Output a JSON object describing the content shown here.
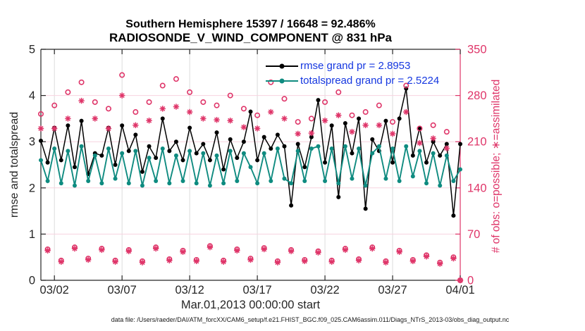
{
  "figure": {
    "title_line1": "Southern Hemisphere 15397 / 16648 = 92.486%",
    "title_line2": "RADIOSONDE_V_WIND_COMPONENT @ 831 hPa",
    "x_label": "Mar.01,2013 00:00:00 start",
    "y_label_left": "rmse and totalspread",
    "y_label_right": "# of obs: o=possible; ∗=assimilated"
  },
  "footer": {
    "datafile": "data file: /Users/raeder/DAI/ATM_forcXX/CAM6_setup/f.e21.FHIST_BGC.f09_025.CAM6assim.011/Diags_NTrS_2013-03/obs_diag_output.nc"
  },
  "colors": {
    "rmse": "#000000",
    "totalspread": "#0f8b80",
    "obs_counts": "#df3569",
    "legend_text": "#1537e0",
    "grid_vertical": "#dcdcdc",
    "grid_horizontal": "#f7d3df",
    "axis_dark": "#262626"
  },
  "chart_data": {
    "type": "line",
    "title": "Southern Hemisphere 15397 / 16648 = 92.486%",
    "subtitle": "RADIOSONDE_V_WIND_COMPONENT @ 831 hPa",
    "xlabel": "Mar.01,2013 00:00:00 start",
    "ylabel_left": "rmse and totalspread",
    "ylabel_right": "# of obs: o=possible; ∗=assimilated",
    "grid": true,
    "x_axis": {
      "range_days": [
        0,
        31
      ],
      "tick_labels": [
        "03/02",
        "03/07",
        "03/12",
        "03/17",
        "03/22",
        "03/27",
        "04/01"
      ],
      "tick_days": [
        1,
        6,
        11,
        16,
        21,
        26,
        31
      ]
    },
    "y_left": {
      "min": 0,
      "max": 5,
      "ticks": [
        0,
        1,
        2,
        3,
        4,
        5
      ]
    },
    "y_right": {
      "min": 0,
      "max": 350,
      "ticks": [
        0,
        70,
        140,
        210,
        280,
        350
      ]
    },
    "legend": [
      {
        "label": "rmse grand pr = 2.8953",
        "series": "rmse"
      },
      {
        "label": "totalspread grand pr = 2.5224",
        "series": "totalspread"
      }
    ],
    "x_days": [
      0,
      0.5,
      1,
      1.5,
      2,
      2.5,
      3,
      3.5,
      4,
      4.5,
      5,
      5.5,
      6,
      6.5,
      7,
      7.5,
      8,
      8.5,
      9,
      9.5,
      10,
      10.5,
      11,
      11.5,
      12,
      12.5,
      13,
      13.5,
      14,
      14.5,
      15,
      15.5,
      16,
      16.5,
      17,
      17.5,
      18,
      18.5,
      19,
      19.5,
      20,
      20.5,
      21,
      21.5,
      22,
      22.5,
      23,
      23.5,
      24,
      24.5,
      25,
      25.5,
      26,
      26.5,
      27,
      27.5,
      28,
      28.5,
      29,
      29.5,
      30,
      30.5,
      31
    ],
    "series": [
      {
        "name": "rmse",
        "axis": "left",
        "color": "#000000",
        "marker": "dot",
        "line": true,
        "values": [
          3.02,
          2.55,
          3.3,
          2.6,
          3.35,
          2.45,
          3.45,
          2.3,
          2.75,
          2.7,
          3.3,
          2.5,
          3.35,
          2.8,
          3.15,
          2.35,
          2.9,
          2.65,
          3.5,
          2.8,
          3.0,
          2.6,
          3.3,
          2.75,
          2.95,
          2.6,
          3.2,
          2.4,
          3.05,
          2.65,
          3.0,
          3.65,
          2.6,
          3.1,
          2.85,
          3.15,
          2.9,
          1.62,
          2.95,
          2.45,
          3.1,
          3.9,
          2.55,
          3.35,
          1.8,
          3.4,
          2.75,
          3.5,
          1.55,
          3.05,
          2.8,
          3.45,
          2.55,
          3.5,
          4.15,
          2.7,
          3.3,
          2.55,
          3.0,
          2.7,
          2.95,
          1.4,
          2.95
        ]
      },
      {
        "name": "totalspread",
        "axis": "left",
        "color": "#0f8b80",
        "marker": "dot",
        "line": true,
        "values": [
          2.6,
          2.15,
          2.85,
          2.1,
          2.8,
          2.05,
          2.9,
          2.15,
          2.7,
          2.1,
          2.85,
          2.2,
          2.75,
          2.1,
          2.8,
          2.05,
          2.65,
          2.15,
          2.85,
          2.1,
          2.7,
          2.15,
          2.8,
          2.1,
          2.75,
          2.05,
          2.7,
          2.1,
          2.8,
          2.15,
          2.75,
          2.45,
          2.1,
          2.75,
          2.15,
          2.85,
          2.2,
          2.1,
          2.8,
          2.15,
          2.85,
          2.9,
          2.15,
          2.85,
          2.1,
          2.9,
          2.2,
          2.85,
          2.05,
          2.75,
          2.9,
          2.2,
          2.85,
          2.15,
          2.9,
          2.25,
          2.8,
          2.1,
          2.75,
          2.05,
          2.7,
          2.15,
          2.4
        ]
      },
      {
        "name": "possible",
        "axis": "right",
        "color": "#df3569",
        "marker": "circle-open",
        "line": false,
        "values": [
          252,
          47,
          265,
          30,
          285,
          50,
          300,
          33,
          270,
          48,
          260,
          30,
          311,
          46,
          255,
          29,
          270,
          50,
          295,
          32,
          305,
          45,
          285,
          31,
          270,
          52,
          265,
          30,
          280,
          47,
          260,
          33,
          250,
          49,
          300,
          29,
          275,
          46,
          240,
          31,
          245,
          44,
          270,
          30,
          285,
          48,
          250,
          32,
          255,
          50,
          265,
          29,
          240,
          45,
          295,
          31,
          230,
          38,
          235,
          27,
          225,
          35,
          0
        ]
      },
      {
        "name": "assimilated",
        "axis": "right",
        "color": "#df3569",
        "marker": "asterisk",
        "line": false,
        "values": [
          230,
          45,
          230,
          28,
          245,
          48,
          272,
          31,
          245,
          46,
          230,
          28,
          280,
          44,
          235,
          27,
          242,
          48,
          260,
          30,
          263,
          43,
          255,
          29,
          245,
          50,
          243,
          28,
          242,
          45,
          232,
          31,
          230,
          47,
          255,
          27,
          245,
          44,
          222,
          29,
          223,
          42,
          242,
          28,
          250,
          46,
          225,
          30,
          235,
          48,
          235,
          27,
          222,
          43,
          255,
          29,
          208,
          36,
          215,
          25,
          200,
          33,
          0
        ]
      }
    ]
  }
}
